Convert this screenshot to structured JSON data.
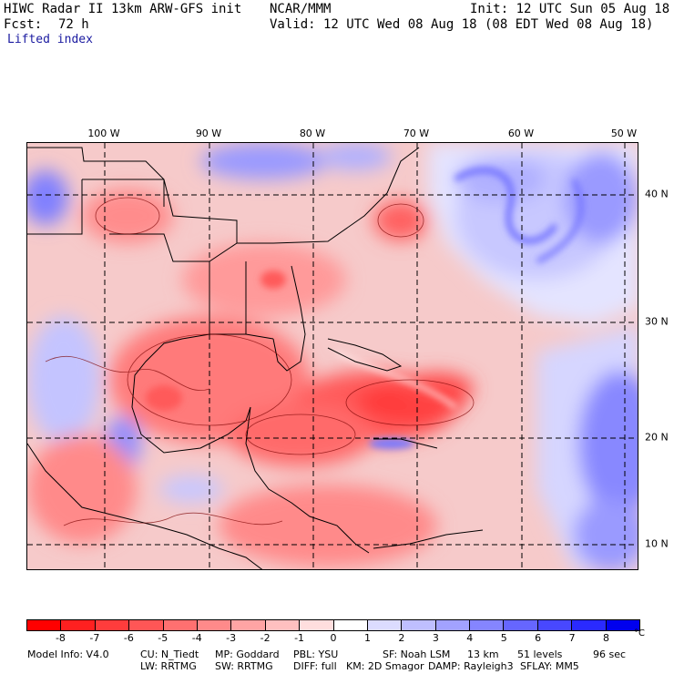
{
  "header": {
    "title": "HIWC Radar II 13km ARW-GFS init",
    "org": "NCAR/MMM",
    "init": "Init: 12 UTC Sun 05 Aug 18",
    "fcst_label": "Fcst:",
    "fcst_value": "72 h",
    "valid": "Valid: 12 UTC Wed 08 Aug 18 (08 EDT Wed 08 Aug 18)",
    "field": "Lifted index"
  },
  "map": {
    "lon_labels": [
      "100 W",
      "90 W",
      "80 W",
      "70 W",
      "60 W",
      "50 W"
    ],
    "lat_labels": [
      "40 N",
      "30 N",
      "20 N",
      "10 N"
    ],
    "field_name": "Lifted index",
    "regions": [
      {
        "name": "gulf-of-mexico",
        "li_min": -6,
        "li_max": -3
      },
      {
        "name": "caribbean",
        "li_min": -8,
        "li_max": -4
      },
      {
        "name": "bahamas",
        "li_min": -8,
        "li_max": -6
      },
      {
        "name": "southeast-us",
        "li_min": -5,
        "li_max": -2
      },
      {
        "name": "western-atlantic-low",
        "li_min": -6,
        "li_max": -4
      },
      {
        "name": "north-atlantic",
        "li_min": 1,
        "li_max": 5
      },
      {
        "name": "mexican-plateau",
        "li_min": 1,
        "li_max": 4
      },
      {
        "name": "eastern-tropical-atlantic",
        "li_min": 1,
        "li_max": 5
      }
    ]
  },
  "colorbar": {
    "ticks": [
      "-8",
      "-7",
      "-6",
      "-5",
      "-4",
      "-3",
      "-2",
      "-1",
      "0",
      "1",
      "2",
      "3",
      "4",
      "5",
      "6",
      "7",
      "8"
    ],
    "unit": "°C",
    "colors": [
      "#ff0000",
      "#ff2020",
      "#ff3c3c",
      "#ff5656",
      "#ff7070",
      "#ff8a8a",
      "#ffa4a4",
      "#ffc0c0",
      "#ffdede",
      "#ffffff",
      "#dcdcff",
      "#bfbfff",
      "#a2a2ff",
      "#8585ff",
      "#6666ff",
      "#4848ff",
      "#2a2aff",
      "#0000ee"
    ]
  },
  "footer": {
    "line1": [
      "Model Info: V4.0",
      "CU: N_Tiedt",
      "MP: Goddard",
      "PBL: YSU",
      "SF: Noah LSM",
      "13 km",
      "51 levels",
      "96 sec"
    ],
    "line2": [
      "LW: RRTMG",
      "SW: RRTMG",
      "DIFF: full",
      "KM: 2D Smagor",
      "DAMP: Rayleigh3",
      "SFLAY: MM5"
    ]
  }
}
